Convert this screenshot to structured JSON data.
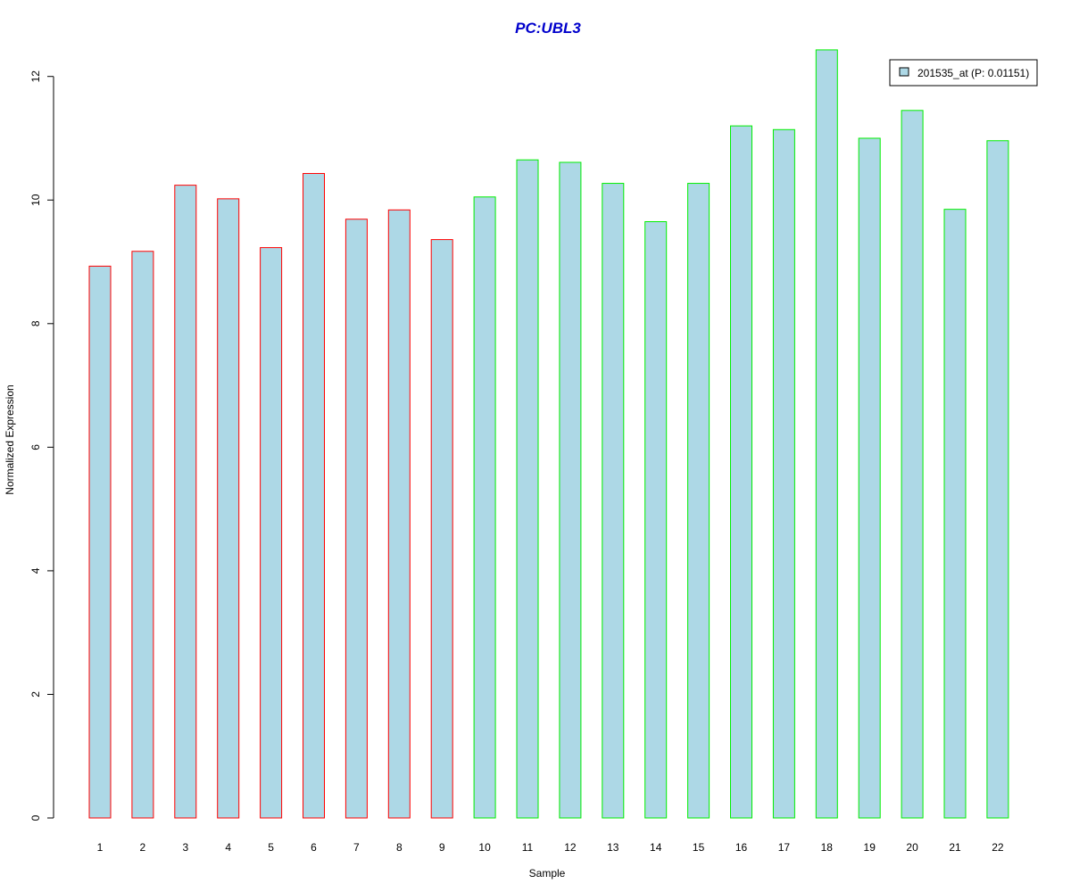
{
  "chart_data": {
    "type": "bar",
    "title": "PC:UBL3",
    "title_color": "#0000cc",
    "xlabel": "Sample",
    "ylabel": "Normalized Expression",
    "categories": [
      "1",
      "2",
      "3",
      "4",
      "5",
      "6",
      "7",
      "8",
      "9",
      "10",
      "11",
      "12",
      "13",
      "14",
      "15",
      "16",
      "17",
      "18",
      "19",
      "20",
      "21",
      "22"
    ],
    "yticks": [
      0,
      2,
      4,
      6,
      8,
      10,
      12
    ],
    "ylim": [
      0,
      12.4
    ],
    "fill_color": "#add8e6",
    "group_colors": {
      "group1": "#ff0000",
      "group2": "#00ee00"
    },
    "groups": [
      "group1",
      "group1",
      "group1",
      "group1",
      "group1",
      "group1",
      "group1",
      "group1",
      "group1",
      "group2",
      "group2",
      "group2",
      "group2",
      "group2",
      "group2",
      "group2",
      "group2",
      "group2",
      "group2",
      "group2",
      "group2",
      "group2"
    ],
    "series": [
      {
        "name": "201535_at (P: 0.01151)",
        "values": [
          8.93,
          9.17,
          10.24,
          10.02,
          9.23,
          10.43,
          9.69,
          9.84,
          9.36,
          10.05,
          10.65,
          10.61,
          10.27,
          9.65,
          10.27,
          11.2,
          11.14,
          12.43,
          11.0,
          11.45,
          9.85,
          10.96
        ]
      }
    ],
    "legend_position": "top-right",
    "grid": false
  }
}
